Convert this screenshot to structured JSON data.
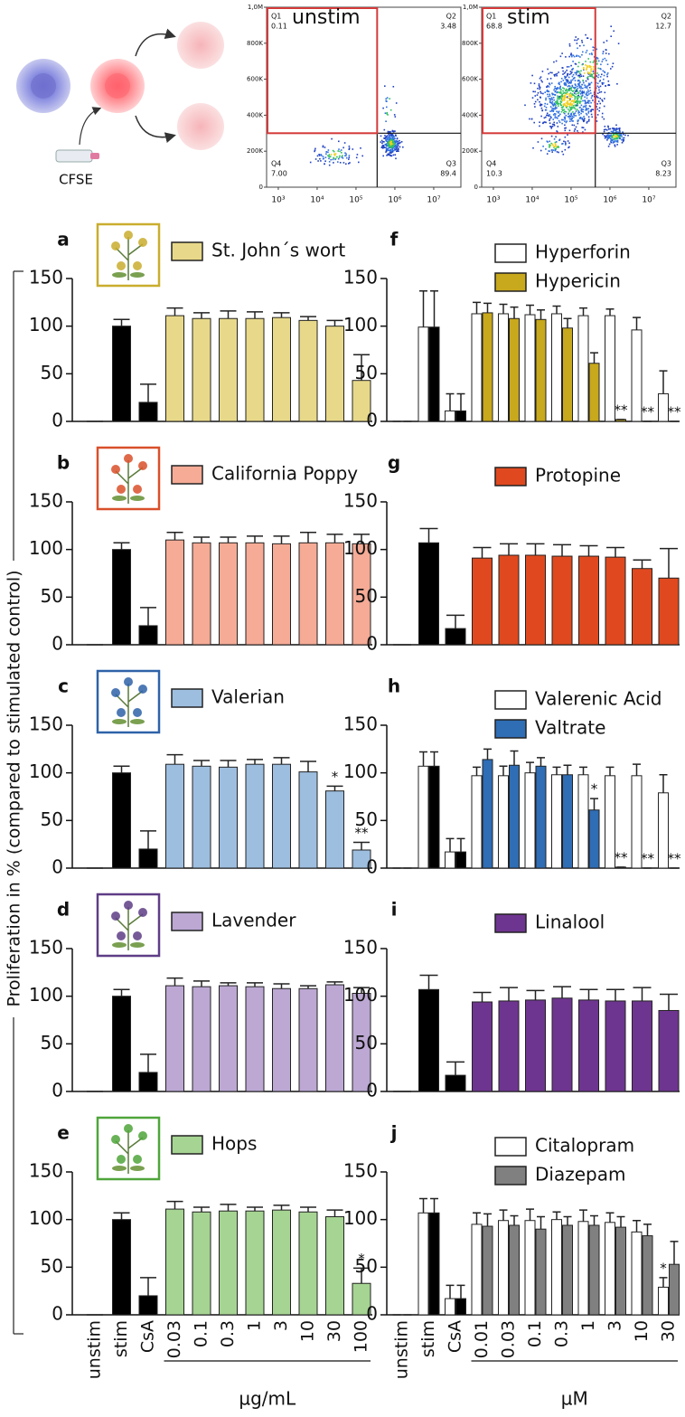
{
  "figure": {
    "ylabel": "Proliferation in % (compared to stimulated control)"
  },
  "schematic": {
    "label": "CFSE"
  },
  "flow_panels": [
    {
      "title": "unstim",
      "xlim": [
        500,
        50000000
      ],
      "ylim": [
        0,
        1000000
      ],
      "xticks": [
        {
          "value": 1000,
          "label": "10³"
        },
        {
          "value": 10000,
          "label": "10⁴"
        },
        {
          "value": 100000,
          "label": "10⁵"
        },
        {
          "value": 1000000,
          "label": "10⁶"
        },
        {
          "value": 10000000,
          "label": "10⁷"
        }
      ],
      "yticks": [
        0,
        {
          "value": 200000,
          "label": "200K"
        },
        {
          "value": 400000,
          "label": "400K"
        },
        {
          "value": 600000,
          "label": "600K"
        },
        {
          "value": 800000,
          "label": "800K"
        },
        {
          "value": 1000000,
          "label": "1,0M"
        }
      ],
      "gate": {
        "x": 350000,
        "y": 300000
      },
      "quadrants": [
        {
          "name": "Q1",
          "value": 0.11
        },
        {
          "name": "Q2",
          "value": 3.48
        },
        {
          "name": "Q3",
          "value": 89.4
        },
        {
          "name": "Q4",
          "value": 7,
          "label": "7.00"
        }
      ]
    },
    {
      "title": "stim",
      "xlim": [
        500,
        50000000
      ],
      "ylim": [
        0,
        1000000
      ],
      "xticks": [
        {
          "value": 1000,
          "label": "10³"
        },
        {
          "value": 10000,
          "label": "10⁴"
        },
        {
          "value": 100000,
          "label": "10⁵"
        },
        {
          "value": 1000000,
          "label": "10⁶"
        },
        {
          "value": 10000000,
          "label": "10⁷"
        }
      ],
      "yticks": [
        0,
        {
          "value": 200000,
          "label": "200K"
        },
        {
          "value": 400000,
          "label": "400K"
        },
        {
          "value": 600000,
          "label": "600K"
        },
        {
          "value": 800000,
          "label": "800K"
        },
        {
          "value": 1000000,
          "label": "1,0M"
        }
      ],
      "gate": {
        "x": 420000,
        "y": 300000
      },
      "quadrants": [
        {
          "name": "Q1",
          "value": 68.8
        },
        {
          "name": "Q2",
          "value": 12.7
        },
        {
          "name": "Q3",
          "value": 8.23
        },
        {
          "name": "Q4",
          "value": 10.3
        }
      ]
    }
  ],
  "x_axes": [
    {
      "categories": [
        "unstim",
        "stim",
        "CsA",
        "0.03",
        "0.1",
        "0.3",
        "1",
        "3",
        "10",
        "30",
        "100"
      ],
      "xlabel": "µg/mL"
    },
    {
      "categories": [
        "unstim",
        "stim",
        "CsA",
        "0.01",
        "0.03",
        "0.1",
        "0.3",
        "1",
        "3",
        "10",
        "30"
      ],
      "xlabel": "µM"
    }
  ],
  "chart_data": [
    {
      "type": "bar",
      "label": "a",
      "ylim": [
        0,
        150
      ],
      "yticks": [
        0,
        50,
        100,
        150
      ],
      "series": [
        {
          "name": "St. John´s wort",
          "color": "#e8d98a",
          "colors": [
            "#000000",
            "#000000",
            "#000000",
            "#e8d98a",
            "#e8d98a",
            "#e8d98a",
            "#e8d98a",
            "#e8d98a",
            "#e8d98a",
            "#e8d98a",
            "#e8d98a"
          ],
          "values": [
            0,
            100,
            20,
            111,
            108,
            108,
            108,
            109,
            106,
            100,
            43
          ],
          "errors": [
            0,
            7,
            19,
            8,
            6,
            8,
            7,
            5,
            4,
            6,
            27
          ],
          "sig": [
            null,
            null,
            null,
            null,
            null,
            null,
            null,
            null,
            null,
            null,
            null
          ]
        }
      ]
    },
    {
      "type": "bar",
      "label": "b",
      "ylim": [
        0,
        150
      ],
      "yticks": [
        0,
        50,
        100,
        150
      ],
      "series": [
        {
          "name": "California Poppy",
          "color": "#f5ab96",
          "colors": [
            "#000000",
            "#000000",
            "#000000",
            "#f5ab96",
            "#f5ab96",
            "#f5ab96",
            "#f5ab96",
            "#f5ab96",
            "#f5ab96",
            "#f5ab96",
            "#f5ab96"
          ],
          "values": [
            0,
            100,
            20,
            110,
            107,
            107,
            107,
            106,
            107,
            107,
            106
          ],
          "errors": [
            0,
            7,
            19,
            8,
            6,
            6,
            7,
            8,
            11,
            9,
            10
          ],
          "sig": [
            null,
            null,
            null,
            null,
            null,
            null,
            null,
            null,
            null,
            null,
            null
          ]
        }
      ]
    },
    {
      "type": "bar",
      "label": "c",
      "ylim": [
        0,
        150
      ],
      "yticks": [
        0,
        50,
        100,
        150
      ],
      "series": [
        {
          "name": "Valerian",
          "color": "#9dbedf",
          "colors": [
            "#000000",
            "#000000",
            "#000000",
            "#9dbedf",
            "#9dbedf",
            "#9dbedf",
            "#9dbedf",
            "#9dbedf",
            "#9dbedf",
            "#9dbedf",
            "#9dbedf"
          ],
          "values": [
            0,
            100,
            20,
            109,
            107,
            106,
            109,
            109,
            101,
            81,
            19
          ],
          "errors": [
            0,
            7,
            19,
            10,
            6,
            7,
            5,
            7,
            11,
            5,
            8
          ],
          "sig": [
            null,
            null,
            null,
            null,
            null,
            null,
            null,
            null,
            null,
            "*",
            "**"
          ]
        }
      ]
    },
    {
      "type": "bar",
      "label": "d",
      "ylim": [
        0,
        150
      ],
      "yticks": [
        0,
        50,
        100,
        150
      ],
      "series": [
        {
          "name": "Lavender",
          "color": "#bca8d3",
          "colors": [
            "#000000",
            "#000000",
            "#000000",
            "#bca8d3",
            "#bca8d3",
            "#bca8d3",
            "#bca8d3",
            "#bca8d3",
            "#bca8d3",
            "#bca8d3",
            "#bca8d3"
          ],
          "values": [
            0,
            100,
            20,
            111,
            110,
            111,
            110,
            108,
            108,
            112,
            103
          ],
          "errors": [
            0,
            7,
            19,
            8,
            6,
            3,
            4,
            5,
            3,
            3,
            6
          ],
          "sig": [
            null,
            null,
            null,
            null,
            null,
            null,
            null,
            null,
            null,
            null,
            null
          ]
        }
      ]
    },
    {
      "type": "bar",
      "label": "e",
      "ylim": [
        0,
        150
      ],
      "yticks": [
        0,
        50,
        100,
        150
      ],
      "series": [
        {
          "name": "Hops",
          "color": "#a6d493",
          "colors": [
            "#000000",
            "#000000",
            "#000000",
            "#a6d493",
            "#a6d493",
            "#a6d493",
            "#a6d493",
            "#a6d493",
            "#a6d493",
            "#a6d493",
            "#a6d493"
          ],
          "values": [
            0,
            100,
            20,
            111,
            108,
            109,
            109,
            110,
            108,
            103,
            33
          ],
          "errors": [
            0,
            7,
            19,
            8,
            5,
            7,
            4,
            5,
            5,
            7,
            16
          ],
          "sig": [
            null,
            null,
            null,
            null,
            null,
            null,
            null,
            null,
            null,
            null,
            "*"
          ]
        }
      ]
    },
    {
      "type": "bar",
      "label": "f",
      "ylim": [
        0,
        150
      ],
      "yticks": [
        0,
        50,
        100,
        150
      ],
      "series": [
        {
          "name": "Hyperforin",
          "color": "#ffffff",
          "colors": [
            "#ffffff",
            "#ffffff",
            "#ffffff",
            "#ffffff",
            "#ffffff",
            "#ffffff",
            "#ffffff",
            "#ffffff",
            "#ffffff",
            "#ffffff",
            "#ffffff"
          ],
          "values": [
            0,
            99,
            11,
            113,
            113,
            112,
            113,
            111,
            111,
            96,
            29
          ],
          "errors": [
            0,
            38,
            18,
            12,
            10,
            10,
            8,
            8,
            7,
            13,
            24
          ],
          "sig": [
            null,
            null,
            null,
            null,
            null,
            null,
            null,
            null,
            null,
            null,
            null
          ]
        },
        {
          "name": "Hypericin",
          "color": "#c8a81c",
          "colors": [
            "#000000",
            "#000000",
            "#000000",
            "#c8a81c",
            "#c8a81c",
            "#c8a81c",
            "#c8a81c",
            "#c8a81c",
            "#c8a81c",
            "#c8a81c",
            "#c8a81c"
          ],
          "values": [
            0,
            99,
            11,
            114,
            108,
            107,
            98,
            61,
            2,
            0,
            0
          ],
          "errors": [
            0,
            38,
            18,
            10,
            12,
            10,
            10,
            11,
            0,
            0,
            0
          ],
          "sig": [
            null,
            null,
            null,
            null,
            null,
            null,
            null,
            null,
            "**",
            "**",
            "**"
          ]
        }
      ]
    },
    {
      "type": "bar",
      "label": "g",
      "ylim": [
        0,
        150
      ],
      "yticks": [
        0,
        50,
        100,
        150
      ],
      "series": [
        {
          "name": "Protopine",
          "color": "#e0491f",
          "colors": [
            "#000000",
            "#000000",
            "#000000",
            "#e0491f",
            "#e0491f",
            "#e0491f",
            "#e0491f",
            "#e0491f",
            "#e0491f",
            "#e0491f",
            "#e0491f"
          ],
          "values": [
            0,
            107,
            17,
            91,
            94,
            94,
            93,
            93,
            92,
            80,
            70
          ],
          "errors": [
            0,
            15,
            14,
            11,
            12,
            12,
            12,
            11,
            10,
            9,
            31
          ],
          "sig": [
            null,
            null,
            null,
            null,
            null,
            null,
            null,
            null,
            null,
            null,
            null
          ]
        }
      ]
    },
    {
      "type": "bar",
      "label": "h",
      "ylim": [
        0,
        150
      ],
      "yticks": [
        0,
        50,
        100,
        150
      ],
      "series": [
        {
          "name": "Valerenic Acid",
          "color": "#ffffff",
          "colors": [
            "#ffffff",
            "#ffffff",
            "#ffffff",
            "#ffffff",
            "#ffffff",
            "#ffffff",
            "#ffffff",
            "#ffffff",
            "#ffffff",
            "#ffffff",
            "#ffffff"
          ],
          "values": [
            0,
            107,
            17,
            97,
            97,
            100,
            98,
            98,
            97,
            97,
            79
          ],
          "errors": [
            0,
            15,
            14,
            9,
            10,
            11,
            8,
            8,
            9,
            12,
            19
          ],
          "sig": [
            null,
            null,
            null,
            null,
            null,
            null,
            null,
            null,
            null,
            null,
            null
          ]
        },
        {
          "name": "Valtrate",
          "color": "#2f6db5",
          "colors": [
            "#000000",
            "#000000",
            "#000000",
            "#2f6db5",
            "#2f6db5",
            "#2f6db5",
            "#2f6db5",
            "#2f6db5",
            "#2f6db5",
            "#2f6db5",
            "#2f6db5"
          ],
          "values": [
            0,
            107,
            17,
            114,
            108,
            107,
            98,
            61,
            1,
            0,
            0
          ],
          "errors": [
            0,
            15,
            14,
            11,
            15,
            9,
            10,
            12,
            0,
            0,
            0
          ],
          "sig": [
            null,
            null,
            null,
            null,
            null,
            null,
            null,
            "*",
            "**",
            "**",
            "**"
          ]
        }
      ]
    },
    {
      "type": "bar",
      "label": "i",
      "ylim": [
        0,
        150
      ],
      "yticks": [
        0,
        50,
        100,
        150
      ],
      "series": [
        {
          "name": "Linalool",
          "color": "#6e3590",
          "colors": [
            "#000000",
            "#000000",
            "#000000",
            "#6e3590",
            "#6e3590",
            "#6e3590",
            "#6e3590",
            "#6e3590",
            "#6e3590",
            "#6e3590",
            "#6e3590"
          ],
          "values": [
            0,
            107,
            17,
            94,
            95,
            96,
            98,
            96,
            95,
            95,
            85
          ],
          "errors": [
            0,
            15,
            14,
            10,
            14,
            10,
            12,
            11,
            12,
            14,
            17
          ],
          "sig": [
            null,
            null,
            null,
            null,
            null,
            null,
            null,
            null,
            null,
            null,
            null
          ]
        }
      ]
    },
    {
      "type": "bar",
      "label": "j",
      "ylim": [
        0,
        150
      ],
      "yticks": [
        0,
        50,
        100,
        150
      ],
      "series": [
        {
          "name": "Citalopram",
          "color": "#ffffff",
          "colors": [
            "#ffffff",
            "#ffffff",
            "#ffffff",
            "#ffffff",
            "#ffffff",
            "#ffffff",
            "#ffffff",
            "#ffffff",
            "#ffffff",
            "#ffffff",
            "#ffffff"
          ],
          "values": [
            0,
            107,
            17,
            95,
            99,
            99,
            100,
            98,
            97,
            87,
            29
          ],
          "errors": [
            0,
            15,
            14,
            12,
            11,
            12,
            8,
            12,
            10,
            12,
            10
          ],
          "sig": [
            null,
            null,
            null,
            null,
            null,
            null,
            null,
            null,
            null,
            null,
            "*"
          ]
        },
        {
          "name": "Diazepam",
          "color": "#808080",
          "colors": [
            "#000000",
            "#000000",
            "#000000",
            "#808080",
            "#808080",
            "#808080",
            "#808080",
            "#808080",
            "#808080",
            "#808080",
            "#808080"
          ],
          "values": [
            0,
            107,
            17,
            93,
            94,
            90,
            94,
            94,
            92,
            83,
            53
          ],
          "errors": [
            0,
            15,
            14,
            13,
            10,
            13,
            9,
            10,
            11,
            12,
            24
          ],
          "sig": [
            null,
            null,
            null,
            null,
            null,
            null,
            null,
            null,
            null,
            null,
            null
          ]
        }
      ]
    }
  ]
}
